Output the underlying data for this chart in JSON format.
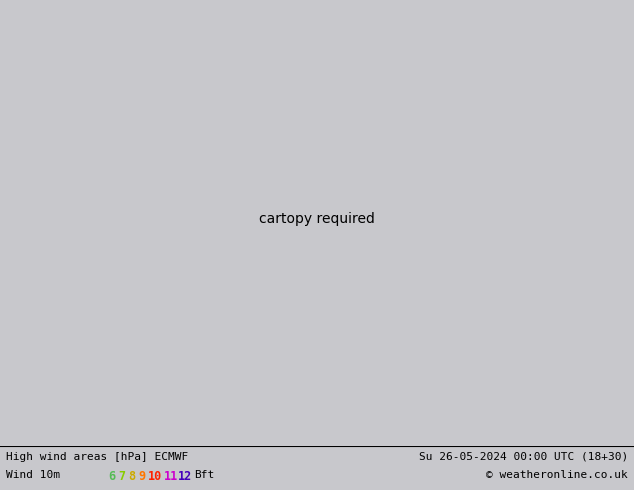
{
  "title_left": "High wind areas [hPa] ECMWF",
  "title_right": "Su 26-05-2024 00:00 UTC (18+30)",
  "subtitle_left": "Wind 10m",
  "subtitle_right": "© weatheronline.co.uk",
  "bft_numbers": [
    "6",
    "7",
    "8",
    "9",
    "10",
    "11",
    "12",
    "Bft"
  ],
  "bft_colors": [
    "#55cc55",
    "#aacc00",
    "#ddaa00",
    "#ff8800",
    "#ff2200",
    "#cc00cc",
    "#2200cc",
    "#000000"
  ],
  "bg_color": "#c8c8cc",
  "land_color": "#aaddaa",
  "sea_color": "#c8c8cc",
  "land_edge_color": "#888899",
  "figsize": [
    6.34,
    4.9
  ],
  "dpi": 100,
  "lon_min": -12.5,
  "lon_max": 12.0,
  "lat_min": 48.5,
  "lat_max": 62.5
}
